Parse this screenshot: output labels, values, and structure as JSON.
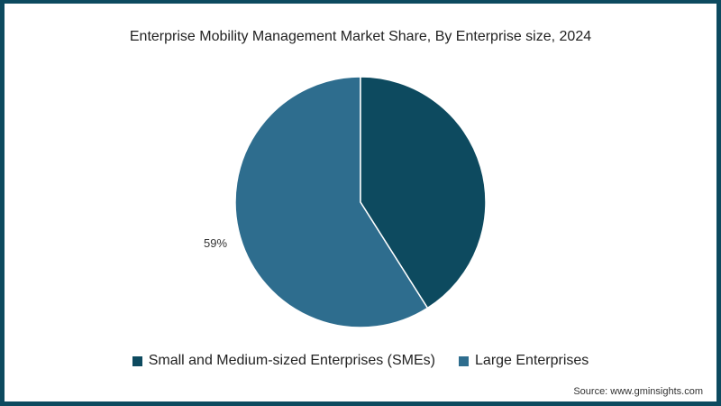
{
  "chart_data": {
    "type": "pie",
    "title": "Enterprise Mobility Management Market Share, By Enterprise size, 2024",
    "categories": [
      "Small and Medium-sized Enterprises (SMEs)",
      "Large Enterprises"
    ],
    "values": [
      41,
      59
    ],
    "colors": [
      "#0d4a5f",
      "#2e6d8e"
    ],
    "data_labels": [
      "",
      "59%"
    ],
    "legend_position": "bottom"
  },
  "title": "Enterprise Mobility Management Market Share, By Enterprise size, 2024",
  "label_large": "59%",
  "legend": [
    {
      "label": "Small and Medium-sized Enterprises (SMEs)",
      "color": "#0d4a5f"
    },
    {
      "label": "Large Enterprises",
      "color": "#2e6d8e"
    }
  ],
  "source": "Source: www.gminsights.com"
}
